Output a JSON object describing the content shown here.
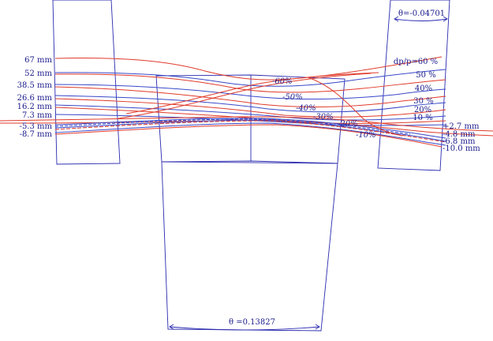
{
  "angles": {
    "top_right": "θ=-0.04701",
    "bottom": "θ =0.13827"
  },
  "left_labels": [
    "67 mm",
    "52 mm",
    "38.5 mm",
    "26.6 mm",
    "16.2 mm",
    "7.3 mm",
    "-5.3 mm",
    "-8.7 mm"
  ],
  "right_labels": [
    "+2.7 mm",
    "-4.8 mm",
    "-6.8 mm",
    "-10.0 mm"
  ],
  "right_pct_labels": [
    "dp/p=60 %",
    "50 %",
    "40%",
    "30 %",
    "20%",
    "10 %"
  ],
  "center_pct_labels": [
    "-60%",
    "-50%",
    "-40%",
    "-30%",
    "-20%",
    "-10%"
  ],
  "colors": {
    "magnet": "#2a2ab0",
    "label": "#1a1a8c",
    "ray_red": "#e03a2a",
    "ray_blue": "#3848c8"
  }
}
